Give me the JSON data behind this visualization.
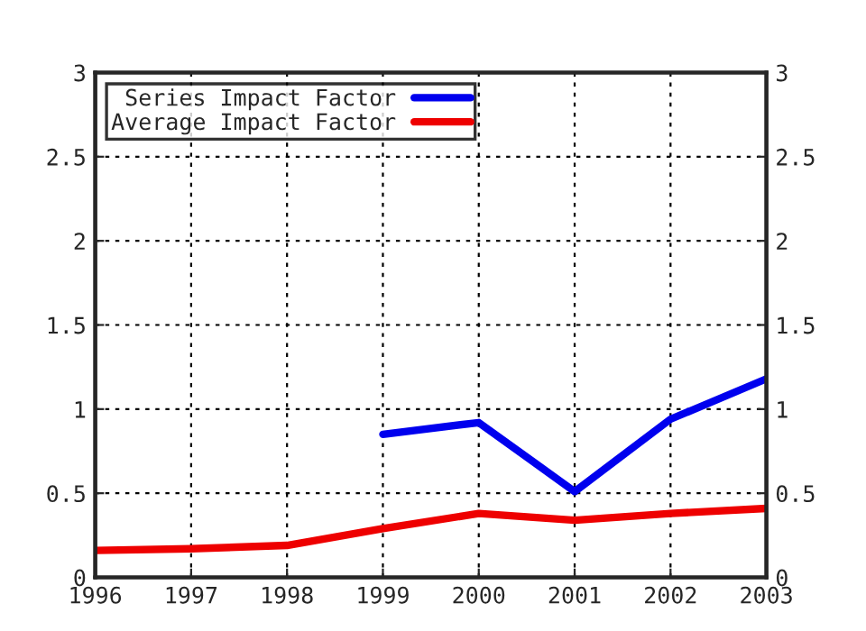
{
  "chart_data": {
    "type": "line",
    "x": [
      1996,
      1997,
      1998,
      1999,
      2000,
      2001,
      2002,
      2003
    ],
    "series": [
      {
        "name": "Series Impact Factor",
        "color": "#0000ee",
        "values": [
          null,
          null,
          null,
          0.85,
          0.92,
          0.51,
          0.94,
          1.18
        ]
      },
      {
        "name": "Average Impact Factor",
        "color": "#ee0000",
        "values": [
          0.16,
          0.17,
          0.19,
          0.29,
          0.38,
          0.34,
          0.38,
          0.41
        ]
      }
    ],
    "xlim": [
      1996,
      2003
    ],
    "xticks": [
      1996,
      1997,
      1998,
      1999,
      2000,
      2001,
      2002,
      2003
    ],
    "ylim": [
      0,
      3
    ],
    "yticks": [
      0,
      {
        "value": 0.5,
        "label": "0.5"
      },
      1,
      {
        "value": 1.5,
        "label": "1.5"
      },
      2,
      {
        "value": 2.5,
        "label": "2.5"
      },
      3
    ],
    "y2lim": [
      0,
      3
    ],
    "y2ticks": [
      0,
      {
        "value": 0.5,
        "label": "0.5"
      },
      1,
      {
        "value": 1.5,
        "label": "1.5"
      },
      2,
      {
        "value": 2.5,
        "label": "2.5"
      },
      3
    ],
    "grid": true,
    "legend": "top left",
    "line_style": "solid"
  }
}
